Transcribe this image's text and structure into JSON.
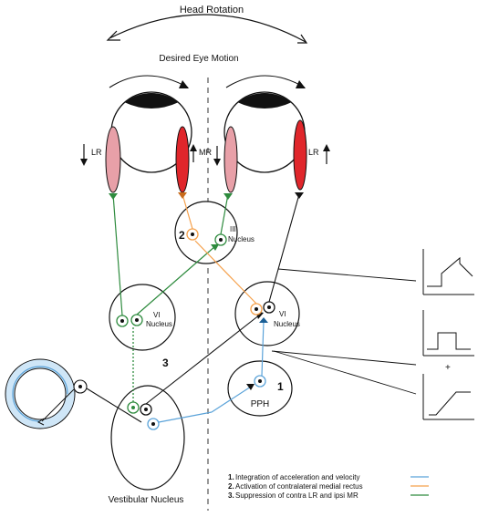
{
  "labels": {
    "head_rotation": "Head Rotation",
    "desired_eye_motion": "Desired Eye Motion",
    "lr": "LR",
    "mr": "MR",
    "lr_right": "LR",
    "iii_nucleus_line1": "III",
    "iii_nucleus_line2": "Nucleus",
    "vi_left_line1": "VI",
    "vi_left_line2": "Nucleus",
    "vi_right_line1": "VI",
    "vi_right_line2": "Nucleus",
    "pph": "PPH",
    "vestibular_nucleus": "Vestibular Nucleus",
    "step1": "1",
    "step2": "2",
    "step3": "3",
    "plus": "+"
  },
  "legend": [
    {
      "num": "1.",
      "text": "Integration of acceleration and velocity",
      "color": "#5ba3d9"
    },
    {
      "num": "2.",
      "text": "Activation of contralateral medial rectus",
      "color": "#f5a04a"
    },
    {
      "num": "3.",
      "text": "Suppression of contra LR and ipsi MR",
      "color": "#2e8b3e"
    }
  ],
  "colors": {
    "blue": "#5ba3d9",
    "orange": "#f5a04a",
    "green": "#2e8b3e",
    "lr_muscle": "#e8a0a8",
    "mr_muscle": "#e0262b",
    "canal": "#cfe6f7"
  }
}
